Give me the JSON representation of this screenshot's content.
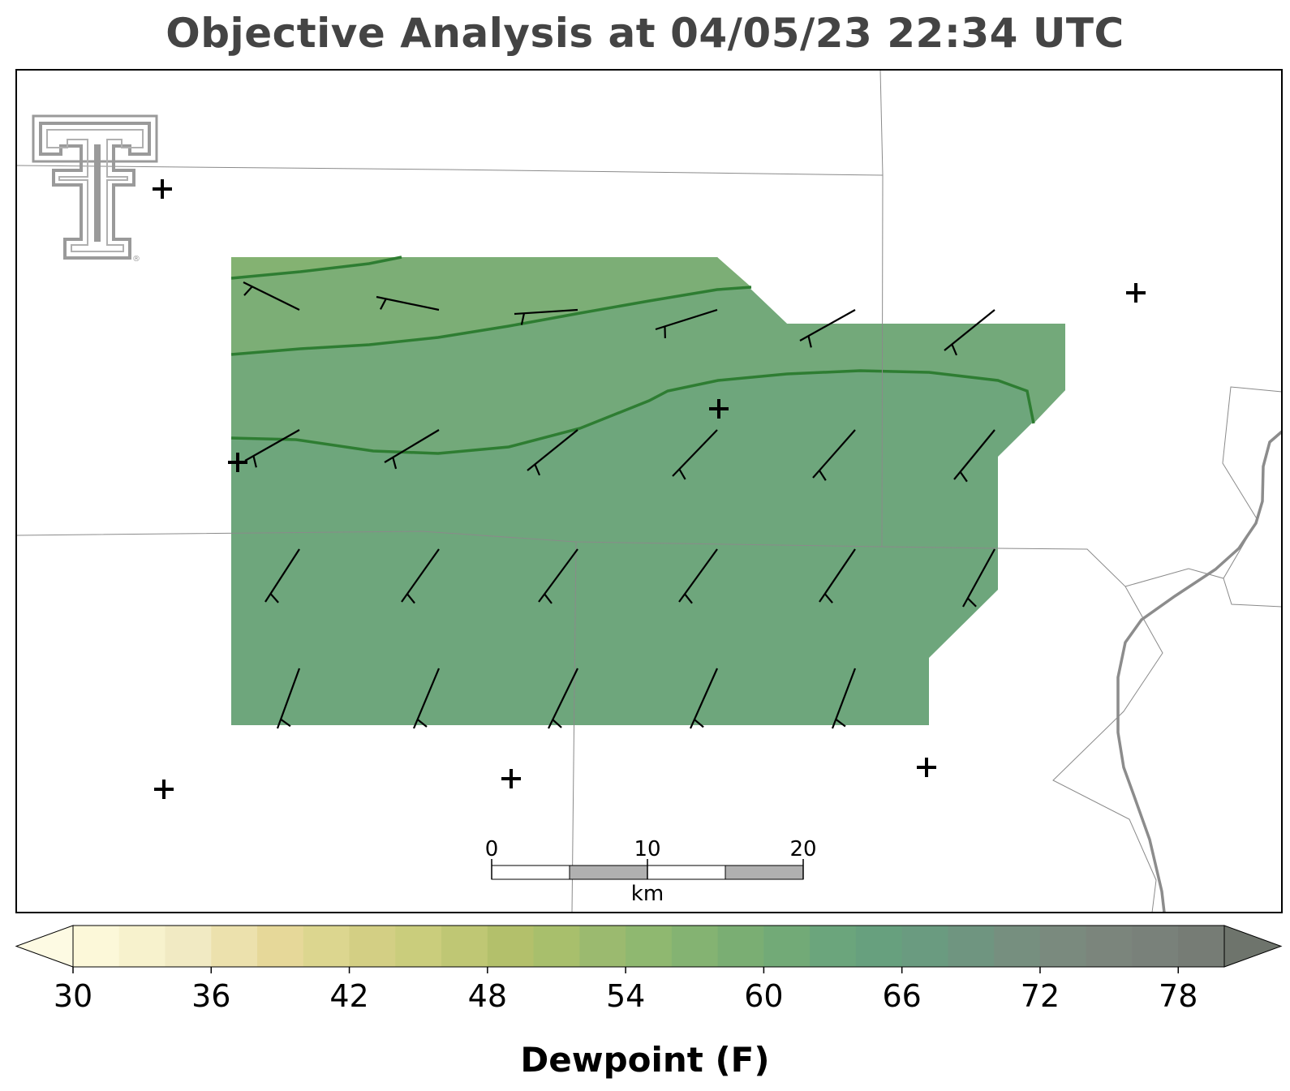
{
  "title": "Objective Analysis at 04/05/23 22:34 UTC",
  "logo_icon": "texas-tech-double-t-logo",
  "colorbar": {
    "label": "Dewpoint (F)",
    "ticks": [
      "30",
      "36",
      "42",
      "48",
      "54",
      "60",
      "66",
      "72",
      "78"
    ],
    "min": 30,
    "max": 80,
    "step": 2,
    "colors": [
      "#fcf8d9",
      "#f7f2cd",
      "#f1eac3",
      "#ece1ad",
      "#e6d899",
      "#dcd68f",
      "#d3cf84",
      "#cacd7c",
      "#bfc774",
      "#b3c06b",
      "#a8bf6c",
      "#9bba6f",
      "#8fb870",
      "#84b372",
      "#7aae73",
      "#72aa77",
      "#6ba57c",
      "#67a07e",
      "#6a9b80",
      "#6f9580",
      "#768f7f",
      "#7a8a7e",
      "#7b857c",
      "#79817a",
      "#767c75"
    ],
    "under_color": "#fdfae3",
    "over_color": "#6e746c"
  },
  "scale_bar": {
    "unit": "km",
    "labels": [
      "0",
      "10",
      "20"
    ]
  },
  "analysis": {
    "contour_levels_f": [
      60,
      62,
      64
    ],
    "band_colors": {
      "below_60": "#80b076",
      "60_to_62": "#76a97a",
      "62_to_64": "#6ea67c",
      "above_64": "#6da57e"
    },
    "contour_color": "#2e7d32"
  },
  "wind_barbs_note": "station wind barbs in knots-style notation",
  "station_markers": "plus-icon"
}
